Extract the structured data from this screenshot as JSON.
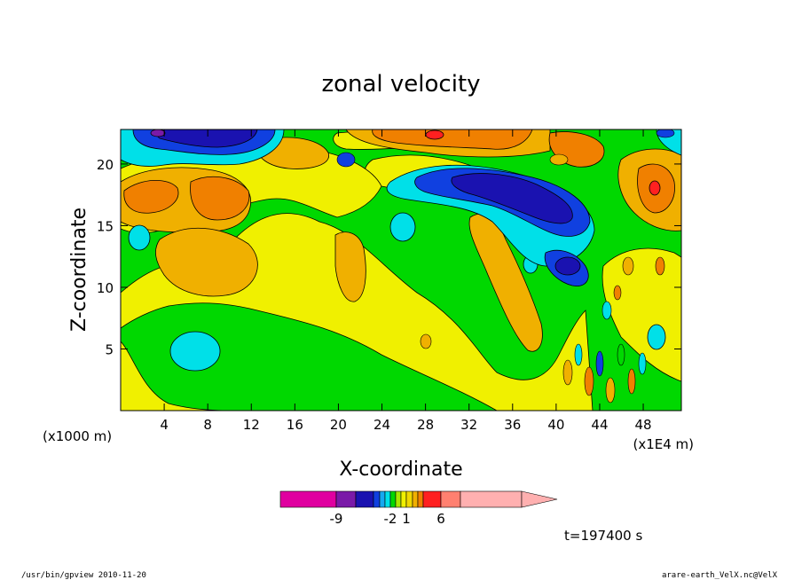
{
  "chart_data": {
    "type": "heatmap",
    "title": "zonal velocity",
    "xlabel": "X-coordinate",
    "ylabel": "Z-coordinate",
    "x_unit_left": "(x1000 m)",
    "x_unit_right": "(x1E4 m)",
    "xlim": [
      0,
      51.5
    ],
    "ylim": [
      0,
      22.8
    ],
    "x_ticks": [
      4,
      8,
      12,
      16,
      20,
      24,
      28,
      32,
      36,
      40,
      44,
      48
    ],
    "y_ticks": [
      5,
      10,
      15,
      20
    ],
    "colorbar": {
      "levels": [
        -14,
        -9,
        -7,
        -5,
        -4,
        -3,
        -2,
        -1,
        0,
        1,
        2,
        3,
        4,
        6,
        8,
        14
      ],
      "colors": [
        "#e000a0",
        "#7a1aa8",
        "#1a12b0",
        "#1040e0",
        "#16a8f0",
        "#00e0e8",
        "#00d800",
        "#a8e800",
        "#f0f000",
        "#f0d800",
        "#f0b000",
        "#f08000",
        "#ff2020",
        "#ff8070",
        "#ffb0b0"
      ],
      "tick_labels": [
        "-9",
        "-2",
        "1",
        "6"
      ]
    },
    "time_label": "t=197400 s"
  },
  "footer": {
    "left": "/usr/bin/gpview   2010-11-20",
    "right": "arare-earth_VelX.nc@VelX"
  }
}
